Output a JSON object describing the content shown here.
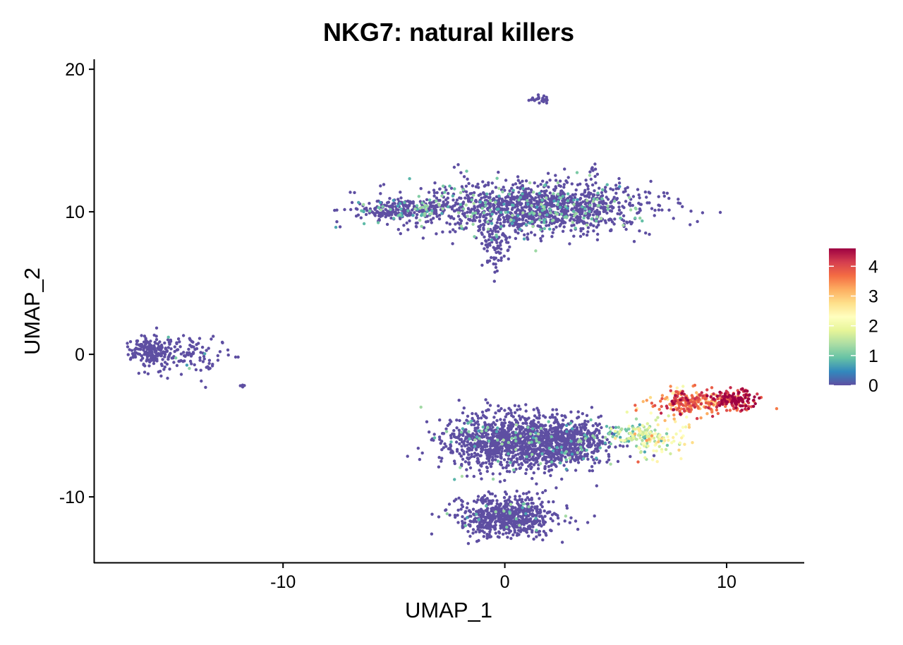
{
  "chart_data": {
    "type": "scatter",
    "title": "NKG7: natural killers",
    "xlabel": "UMAP_1",
    "ylabel": "UMAP_2",
    "xlim": [
      -18.5,
      13.5
    ],
    "ylim": [
      -14.6,
      20.7
    ],
    "x_ticks": [
      -10,
      0,
      10
    ],
    "x_tick_labels": [
      "-10",
      "0",
      "10"
    ],
    "y_ticks": [
      -10,
      0,
      10,
      20
    ],
    "y_tick_labels": [
      "-10",
      "0",
      "10",
      "20"
    ],
    "grid": false,
    "legend": {
      "placement": "right",
      "type": "colorbar",
      "min": 0,
      "max": 4.6,
      "ticks": [
        0,
        1,
        2,
        3,
        4
      ],
      "tick_labels": [
        "0",
        "1",
        "2",
        "3",
        "4"
      ],
      "palette": [
        "#5e4fa2",
        "#3288bd",
        "#66c2a5",
        "#abdda4",
        "#e6f598",
        "#ffffbf",
        "#fee08b",
        "#fdae61",
        "#f46d43",
        "#d53e4f",
        "#9e0142"
      ]
    },
    "point_color_base": "#5e4fa2",
    "clusters": [
      {
        "name": "top-small",
        "cx": 1.6,
        "cy": 17.9,
        "sx": 0.25,
        "sy": 0.15,
        "n": 25,
        "expr": 0
      },
      {
        "name": "upper-speck",
        "cx": 4.0,
        "cy": 13.2,
        "sx": 0.08,
        "sy": 0.25,
        "n": 6,
        "expr": 0
      },
      {
        "name": "upper-main",
        "cx": 1.2,
        "cy": 10.3,
        "sx": 2.6,
        "sy": 0.9,
        "n": 1400,
        "expr": 0.12
      },
      {
        "name": "upper-wing",
        "cx": -4.6,
        "cy": 10.1,
        "sx": 1.1,
        "sy": 0.35,
        "n": 240,
        "expr": 0.08
      },
      {
        "name": "upper-tail",
        "cx": -0.4,
        "cy": 7.8,
        "sx": 0.35,
        "sy": 0.9,
        "n": 90,
        "expr": 0.05
      },
      {
        "name": "left-cluster",
        "cx": -16.0,
        "cy": 0.2,
        "sx": 0.45,
        "sy": 0.45,
        "n": 150,
        "expr": 0
      },
      {
        "name": "left-ring",
        "cx": -14.6,
        "cy": 0.0,
        "sx": 1.0,
        "sy": 0.75,
        "n": 140,
        "expr": 0.02
      },
      {
        "name": "left-speck",
        "cx": -11.8,
        "cy": -2.2,
        "sx": 0.1,
        "sy": 0.05,
        "n": 4,
        "expr": 0
      },
      {
        "name": "lower-main",
        "cx": 0.3,
        "cy": -6.2,
        "sx": 1.5,
        "sy": 1.0,
        "n": 1100,
        "expr": 0.04
      },
      {
        "name": "lower-right",
        "cx": 2.9,
        "cy": -6.1,
        "sx": 1.0,
        "sy": 0.8,
        "n": 500,
        "expr": 0.06
      },
      {
        "name": "lower-bottom",
        "cx": 0.1,
        "cy": -11.4,
        "sx": 1.1,
        "sy": 0.7,
        "n": 650,
        "expr": 0.04
      },
      {
        "name": "bridge",
        "cx": 5.8,
        "cy": -5.7,
        "sx": 0.7,
        "sy": 0.5,
        "n": 110,
        "expr": 1.4
      },
      {
        "name": "nk-lower-arc",
        "cx": 6.9,
        "cy": -5.9,
        "sx": 0.6,
        "sy": 0.7,
        "n": 80,
        "expr": 2.2
      },
      {
        "name": "nk-mid",
        "cx": 8.4,
        "cy": -3.4,
        "sx": 0.9,
        "sy": 0.45,
        "n": 230,
        "expr": 3.6
      },
      {
        "name": "nk-right",
        "cx": 10.4,
        "cy": -3.2,
        "sx": 0.45,
        "sy": 0.35,
        "n": 150,
        "expr": 4.3
      }
    ]
  }
}
